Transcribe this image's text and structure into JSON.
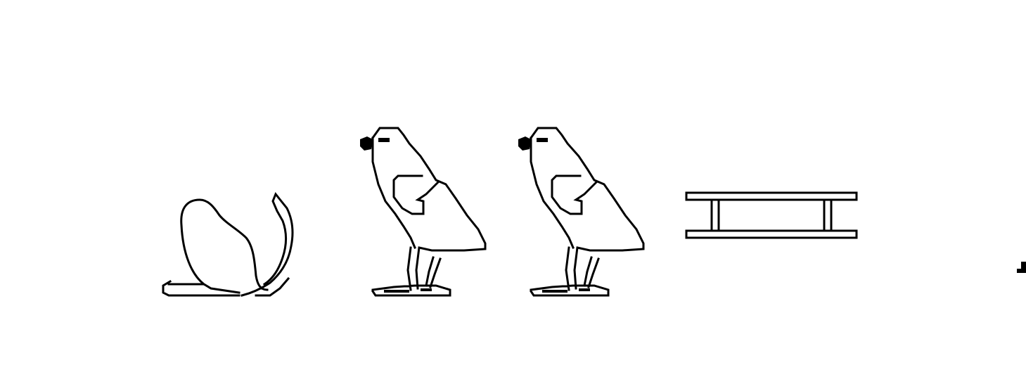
{
  "hieroglyph_sequence": {
    "glyphs": [
      {
        "id": "glyph-1",
        "name": "rope-or-tail-sign-icon"
      },
      {
        "id": "glyph-2",
        "name": "quail-bird-icon"
      },
      {
        "id": "glyph-3",
        "name": "quail-bird-icon"
      },
      {
        "id": "glyph-4",
        "name": "ladder-sledge-sign-icon"
      }
    ],
    "colors": {
      "ink": "#000000",
      "background": "#ffffff"
    }
  }
}
